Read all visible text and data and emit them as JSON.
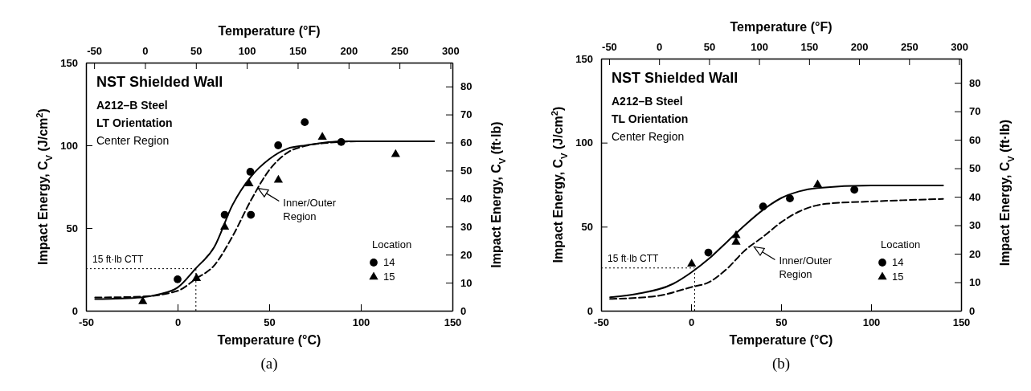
{
  "chart_data": [
    {
      "type": "scatter",
      "xlabel": "Temperature (°C)",
      "x2label": "Temperature (°F)",
      "ylabel": "Impact Energy, C$_{V}$ (J/cm$^{2}$)",
      "y2label": "Impact Energy, C$_{V}$ (ft·lb)",
      "xlim": [
        -50,
        150
      ],
      "xticks": [
        -50,
        0,
        50,
        100,
        150
      ],
      "x2lim": [
        -58,
        302
      ],
      "x2ticks": [
        -50,
        0,
        50,
        100,
        150,
        200,
        250,
        300
      ],
      "ylim": [
        0,
        150
      ],
      "yticks": [
        0,
        50,
        100,
        150
      ],
      "y2lim": [
        0,
        88.5
      ],
      "y2ticks": [
        0,
        10,
        20,
        30,
        40,
        50,
        60,
        70,
        80
      ],
      "legend": "bottom right",
      "legend_title": "Location",
      "grid": false,
      "series": [
        {
          "name": "14",
          "marker": "circle",
          "color": "#000000",
          "x": [
            0,
            25.7,
            39.7,
            40,
            54.9,
            69.4,
            89.3
          ],
          "values": [
            19,
            58,
            84,
            58,
            100,
            114,
            102
          ]
        },
        {
          "name": "15",
          "marker": "triangle",
          "color": "#000000",
          "x": [
            -19,
            10.3,
            25.7,
            39,
            55,
            79,
            119
          ],
          "values": [
            5.6,
            19.6,
            50.6,
            76.8,
            79,
            105,
            94.5
          ]
        },
        {
          "type": "line",
          "marker": "none",
          "line_style": "solid",
          "color": "#000000",
          "x": [
            -45,
            -20,
            -10,
            0,
            10,
            20,
            30,
            40,
            50,
            60,
            70,
            90,
            140
          ],
          "values": [
            7,
            8,
            10,
            14,
            25.7,
            38.5,
            64,
            81,
            91.6,
            98,
            100,
            102.4,
            102.4
          ]
        },
        {
          "type": "line",
          "marker": "none",
          "line_style": "dashed",
          "color": "#000000",
          "x": [
            -45,
            -20,
            0,
            10,
            20,
            30,
            40,
            50,
            60,
            70,
            80,
            100,
            140
          ],
          "values": [
            8,
            8.5,
            12,
            19.3,
            27.4,
            45,
            66.7,
            85,
            95.6,
            99.7,
            101.3,
            102.4,
            102.4
          ]
        }
      ],
      "ref_lines": [
        {
          "axis": "y2",
          "value": 15,
          "label": "15 ft·lb CTT",
          "line_style": "dotted",
          "color": "#000000"
        },
        {
          "axis": "x",
          "value": 10,
          "line_style": "dotted",
          "color": "#000000"
        }
      ],
      "annotations": [
        "NST Shielded Wall",
        "A212–B Steel",
        "LT Orientation",
        "Center Region",
        {
          "text": "Inner/Outer Region",
          "x": 44,
          "y": 74
        },
        "(a)"
      ]
    },
    {
      "type": "scatter",
      "xlabel": "Temperature (°C)",
      "x2label": "Temperature (°F)",
      "ylabel": "Impact Energy, C$_{V}$ (J/cm$^{2}$)",
      "y2label": "Impact Energy, C$_{V}$ (ft·lb)",
      "xlim": [
        -50,
        150
      ],
      "xticks": [
        -50,
        0,
        50,
        100,
        150
      ],
      "x2lim": [
        -58,
        302
      ],
      "x2ticks": [
        -50,
        0,
        50,
        100,
        150,
        200,
        250,
        300
      ],
      "ylim": [
        0,
        150
      ],
      "yticks": [
        0,
        50,
        100,
        150
      ],
      "y2lim": [
        0,
        88.5
      ],
      "y2ticks": [
        0,
        10,
        20,
        30,
        40,
        50,
        60,
        70,
        80
      ],
      "legend": "bottom right",
      "legend_title": "Location",
      "grid": false,
      "series": [
        {
          "name": "14",
          "marker": "circle",
          "color": "#000000",
          "x": [
            9.6,
            40,
            54.9,
            90.7
          ],
          "values": [
            34.6,
            62,
            66.8,
            72
          ]
        },
        {
          "name": "15",
          "marker": "triangle",
          "color": "#000000",
          "x": [
            0.3,
            25,
            25,
            70.3
          ],
          "values": [
            27.8,
            44.8,
            40.8,
            75
          ]
        },
        {
          "type": "line",
          "marker": "none",
          "line_style": "solid",
          "color": "#000000",
          "x": [
            -45,
            -30,
            -10,
            0,
            10,
            20,
            30,
            40,
            50,
            60,
            70,
            100,
            140
          ],
          "values": [
            8,
            10,
            16,
            22.7,
            31,
            41,
            51,
            60,
            67,
            71,
            73,
            74.5,
            74.5
          ]
        },
        {
          "type": "line",
          "marker": "none",
          "line_style": "dashed",
          "color": "#000000",
          "x": [
            -45,
            -20,
            0,
            10,
            20,
            30,
            40,
            50,
            60,
            75,
            100,
            140
          ],
          "values": [
            7,
            8.6,
            14,
            17,
            25,
            36,
            44,
            52.6,
            59,
            63.6,
            65,
            66.5
          ]
        }
      ],
      "ref_lines": [
        {
          "axis": "y2",
          "value": 15,
          "label": "15 ft·lb CTT",
          "line_style": "dotted",
          "color": "#000000"
        },
        {
          "axis": "x",
          "value": 2,
          "line_style": "dotted",
          "color": "#000000"
        }
      ],
      "annotations": [
        "NST Shielded Wall",
        "A212–B Steel",
        "TL Orientation",
        "Center Region",
        {
          "text": "Inner/Outer Region",
          "x": 35,
          "y": 38
        },
        "(b)"
      ]
    }
  ]
}
